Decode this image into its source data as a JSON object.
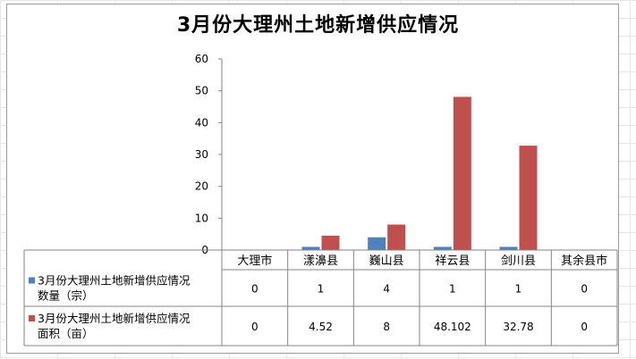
{
  "chart_data": {
    "type": "bar",
    "title": "3月份大理州土地新增供应情况",
    "categories": [
      "大理市",
      "漾濞县",
      "巍山县",
      "祥云县",
      "剑川县",
      "其余县市"
    ],
    "series": [
      {
        "name": "3月份大理州土地新增供应情况数量（宗）",
        "legend_lines": [
          "3月份大理州土地新增供应情况",
          "数量（宗）"
        ],
        "color": "#4F81BD",
        "values": [
          0,
          1,
          4,
          1,
          1,
          0
        ],
        "labels": [
          "0",
          "1",
          "4",
          "1",
          "1",
          "0"
        ]
      },
      {
        "name": "3月份大理州土地新增供应情况面积（亩）",
        "legend_lines": [
          "3月份大理州土地新增供应情况",
          "面积（亩）"
        ],
        "color": "#C0504D",
        "values": [
          0,
          4.52,
          8,
          48.102,
          32.78,
          0
        ],
        "labels": [
          "0",
          "4.52",
          "8",
          "48.102",
          "32.78",
          "0"
        ]
      }
    ],
    "yticks": [
      "0",
      "10",
      "20",
      "30",
      "40",
      "50",
      "60"
    ],
    "ylim": [
      0,
      60
    ],
    "xlabel": "",
    "ylabel": "",
    "grid": false,
    "legend": "data-table"
  }
}
